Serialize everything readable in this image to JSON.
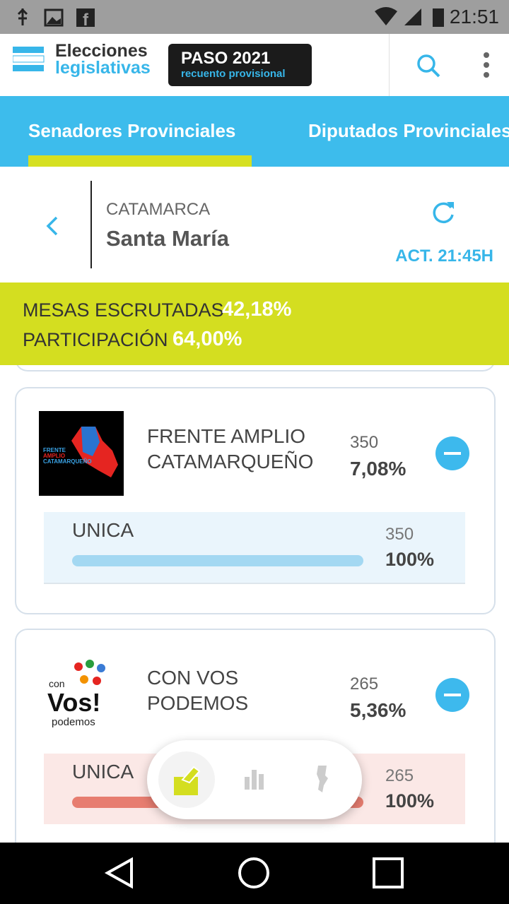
{
  "status_bar": {
    "time": "21:51"
  },
  "header": {
    "brand_line1": "Elecciones",
    "brand_line2": "legislativas",
    "badge_title": "PASO 2021",
    "badge_subtitle": "recuento provisional"
  },
  "tabs": [
    "Senadores Provinciales",
    "Diputados Provinciales"
  ],
  "location": {
    "province": "CATAMARCA",
    "district": "Santa María",
    "updated": "ACT. 21:45H"
  },
  "summary": {
    "mesas_label": "MESAS ESCRUTADAS",
    "mesas_value": "42,18%",
    "participacion_label": "PARTICIPACIÓN",
    "participacion_value": "64,00%"
  },
  "parties": [
    {
      "logo_text": [
        "FRENTE",
        "AMPLIO",
        "CATAMARQUEÑO"
      ],
      "name": [
        "FRENTE AMPLIO",
        "CATAMARQUEÑO"
      ],
      "votes": "350",
      "percent": "7,08%",
      "list": {
        "name": "UNICA",
        "votes": "350",
        "percent": "100%"
      }
    },
    {
      "logo_text": [
        "con",
        "Vos!",
        "podemos"
      ],
      "name": [
        "CON VOS",
        "PODEMOS"
      ],
      "votes": "265",
      "percent": "5,36%",
      "list": {
        "name": "UNICA",
        "votes": "265",
        "percent": "100%"
      }
    }
  ]
}
